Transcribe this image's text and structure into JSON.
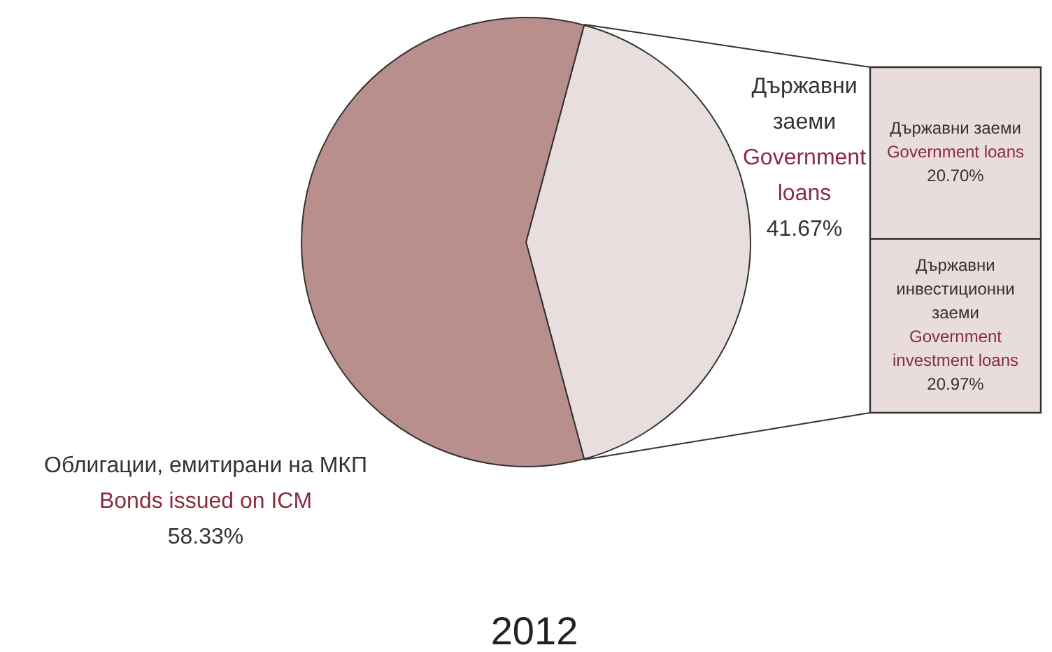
{
  "chart_data": [
    {
      "type": "pie",
      "title": "2012",
      "categories": [
        "Държавни заеми\nGovernment loans",
        "Облигации, емитирани на МКП\nBonds issued on ICM"
      ],
      "values": [
        41.67,
        58.33
      ],
      "colors": [
        "#e9dede",
        "#b88f8d"
      ],
      "value_labels": [
        "41.67%",
        "58.33%"
      ]
    },
    {
      "type": "bar",
      "stacked": true,
      "categories": [
        null
      ],
      "series": [
        {
          "name": "Държавни инвестиционни заеми\nGovernment investment loans",
          "color": "#e8dcdc",
          "values": [
            20.97
          ],
          "value_labels": [
            "20.97%"
          ]
        },
        {
          "name": "Държавни заеми\nGovernment loans",
          "color": "#e8dcdc",
          "values": [
            20.7
          ],
          "value_labels": [
            "20.70%"
          ]
        }
      ]
    }
  ]
}
